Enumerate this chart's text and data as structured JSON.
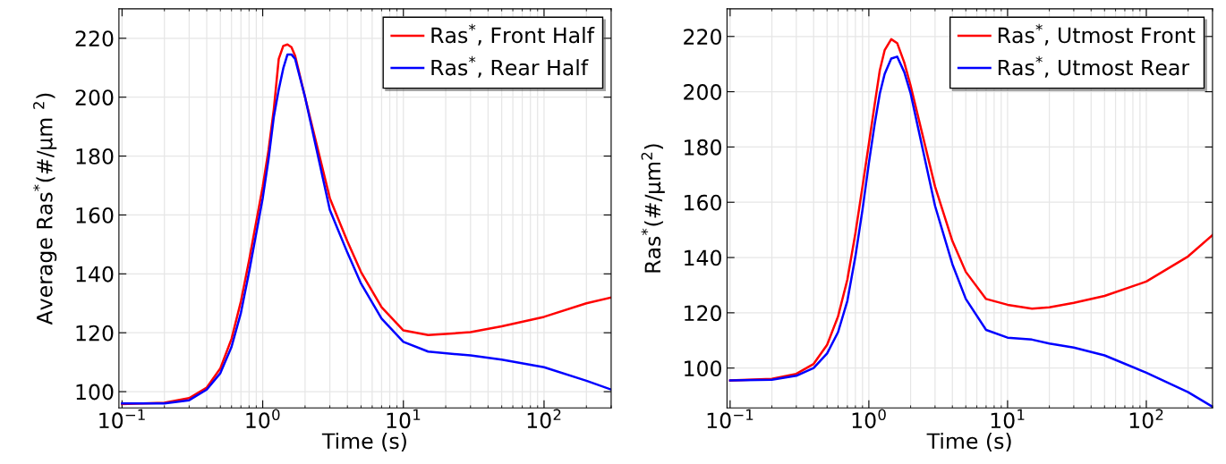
{
  "chart_data": [
    {
      "type": "line",
      "xlabel": "Time (s)",
      "ylabel": "Average Ras$^{*}$(#/µm $^{2}$)",
      "log": "x",
      "grid": true,
      "legend": "top right",
      "xlim": [
        0.095,
        300
      ],
      "ylim": [
        94.5,
        230
      ],
      "xticks": [
        {
          "value": 0.1,
          "label": "10$^{−1}$"
        },
        {
          "value": 1,
          "label": "10$^{0}$"
        },
        {
          "value": 10,
          "label": "10$^{1}$"
        },
        {
          "value": 100,
          "label": "10$^{2}$"
        }
      ],
      "yticks": [
        100,
        120,
        140,
        160,
        180,
        200,
        220
      ],
      "x": [
        0.1,
        0.2,
        0.3,
        0.4,
        0.5,
        0.6,
        0.7,
        0.8,
        0.9,
        1.0,
        1.1,
        1.2,
        1.3,
        1.4,
        1.5,
        1.6,
        1.7,
        2,
        3,
        4,
        5,
        7,
        10,
        15,
        30,
        50,
        100,
        200,
        300
      ],
      "series": [
        {
          "name": "Ras$^{*}$, Front Half",
          "color": "#ff0000",
          "values": [
            95.8,
            96.2,
            97.8,
            101.4,
            107.9,
            117.9,
            130.7,
            144.6,
            157.8,
            169.6,
            182,
            196,
            213,
            217.4,
            217.9,
            217,
            214,
            200,
            165.7,
            151,
            140.6,
            128.7,
            120.8,
            119.2,
            120.2,
            122.2,
            125.4,
            130,
            132
          ]
        },
        {
          "name": "Ras$^{*}$, Rear Half",
          "color": "#0000ff",
          "values": [
            96,
            96,
            97.1,
            100.7,
            106.3,
            115.2,
            126.8,
            140.6,
            153.8,
            165.7,
            178.9,
            193.4,
            202.6,
            209.8,
            214.5,
            214.5,
            213,
            200,
            161.7,
            147.2,
            136.7,
            124.8,
            116.9,
            113.6,
            112.3,
            110.9,
            108.3,
            103.7,
            100.7
          ]
        }
      ]
    },
    {
      "type": "line",
      "xlabel": "Time (s)",
      "ylabel": "Ras$^{*}$(#/µm$^{2}$)",
      "log": "x",
      "grid": true,
      "legend": "top right",
      "xlim": [
        0.095,
        300
      ],
      "ylim": [
        85.6,
        230
      ],
      "xticks": [
        {
          "value": 0.1,
          "label": "10$^{−1}$"
        },
        {
          "value": 1,
          "label": "10$^{0}$"
        },
        {
          "value": 10,
          "label": "10$^{1}$"
        },
        {
          "value": 100,
          "label": "10$^{2}$"
        }
      ],
      "yticks": [
        100,
        120,
        140,
        160,
        180,
        200,
        220
      ],
      "x": [
        0.1,
        0.2,
        0.3,
        0.4,
        0.5,
        0.6,
        0.7,
        0.8,
        0.9,
        1.0,
        1.1,
        1.2,
        1.3,
        1.45,
        1.6,
        1.8,
        2,
        3,
        4,
        5,
        7,
        10,
        15,
        20,
        30,
        50,
        100,
        200,
        300
      ],
      "series": [
        {
          "name": "Ras$^{*}$, Utmost Front",
          "color": "#ff0000",
          "values": [
            95.5,
            96.1,
            97.9,
            101.5,
            108.4,
            118.7,
            132,
            148.8,
            165.7,
            181.1,
            195.2,
            207.8,
            215,
            219,
            217.6,
            210.6,
            202.2,
            165.7,
            146,
            134.8,
            125,
            122.9,
            121.5,
            122,
            123.6,
            126.1,
            131.3,
            140.4,
            148.1
          ]
        },
        {
          "name": "Ras$^{*}$, Utmost Rear",
          "color": "#0000ff",
          "values": [
            95.5,
            95.8,
            97.2,
            100,
            105.3,
            113,
            124.3,
            140.4,
            157.3,
            174.1,
            188.1,
            199.4,
            206.4,
            212,
            212.7,
            207.1,
            199.4,
            158.7,
            137.6,
            125,
            113.8,
            111,
            110.3,
            108.9,
            107.4,
            104.6,
            98.3,
            91.3,
            86
          ]
        }
      ]
    }
  ]
}
